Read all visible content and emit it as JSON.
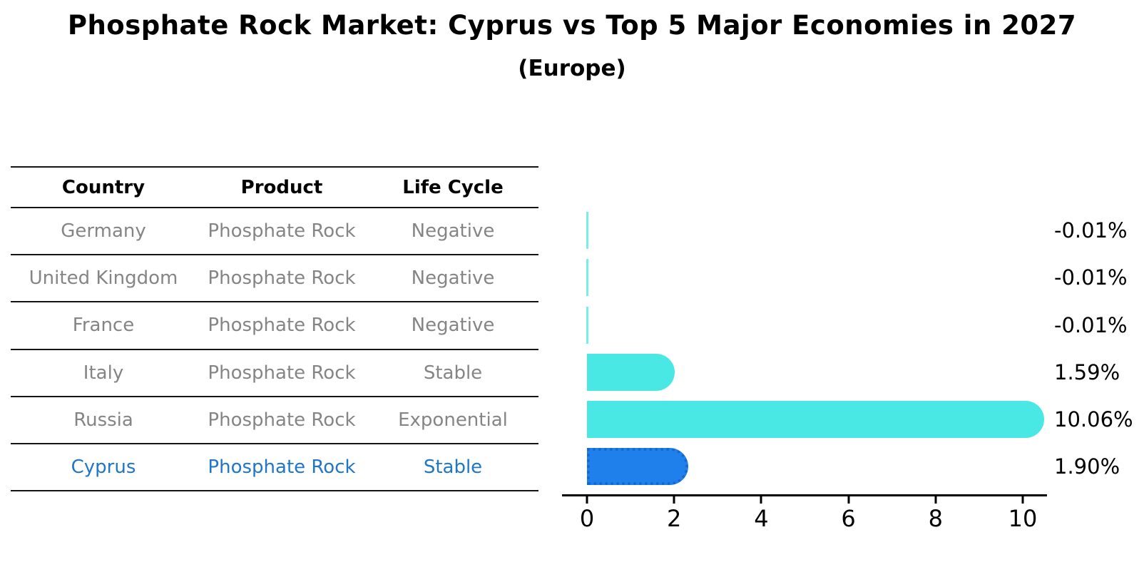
{
  "header": {
    "title": "Phosphate Rock Market: Cyprus vs Top 5 Major Economies in 2027",
    "subtitle": "(Europe)"
  },
  "table": {
    "columns": [
      "Country",
      "Product",
      "Life Cycle"
    ],
    "rows": [
      {
        "country": "Germany",
        "product": "Phosphate Rock",
        "life_cycle": "Negative"
      },
      {
        "country": "United Kingdom",
        "product": "Phosphate Rock",
        "life_cycle": "Negative"
      },
      {
        "country": "France",
        "product": "Phosphate Rock",
        "life_cycle": "Negative"
      },
      {
        "country": "Italy",
        "product": "Phosphate Rock",
        "life_cycle": "Stable"
      },
      {
        "country": "Russia",
        "product": "Phosphate Rock",
        "life_cycle": "Exponential"
      },
      {
        "country": "Cyprus",
        "product": "Phosphate Rock",
        "life_cycle": "Stable"
      }
    ],
    "highlight_row": "Cyprus"
  },
  "chart_data": {
    "type": "bar",
    "orientation": "horizontal",
    "title": "Phosphate Rock Market: Cyprus vs Top 5 Major Economies in 2027",
    "subtitle": "(Europe)",
    "categories": [
      "Germany",
      "United Kingdom",
      "France",
      "Italy",
      "Russia",
      "Cyprus"
    ],
    "values": [
      -0.01,
      -0.01,
      -0.01,
      1.59,
      10.06,
      1.9
    ],
    "value_labels": [
      "-0.01%",
      "-0.01%",
      "-0.01%",
      "1.59%",
      "10.06%",
      "1.90%"
    ],
    "x_ticks": [
      "0",
      "2",
      "4",
      "6",
      "8",
      "10"
    ],
    "xlim": [
      0,
      10.6
    ],
    "grid": false,
    "legend": null,
    "highlight_index": 5,
    "colors": {
      "bar": "#4ae8e4",
      "highlight_bar": "#1f80ec",
      "highlight_border": "#1667cf",
      "highlight_text": "#2077c8",
      "cell_text": "#858585",
      "axis": "#000000"
    }
  }
}
